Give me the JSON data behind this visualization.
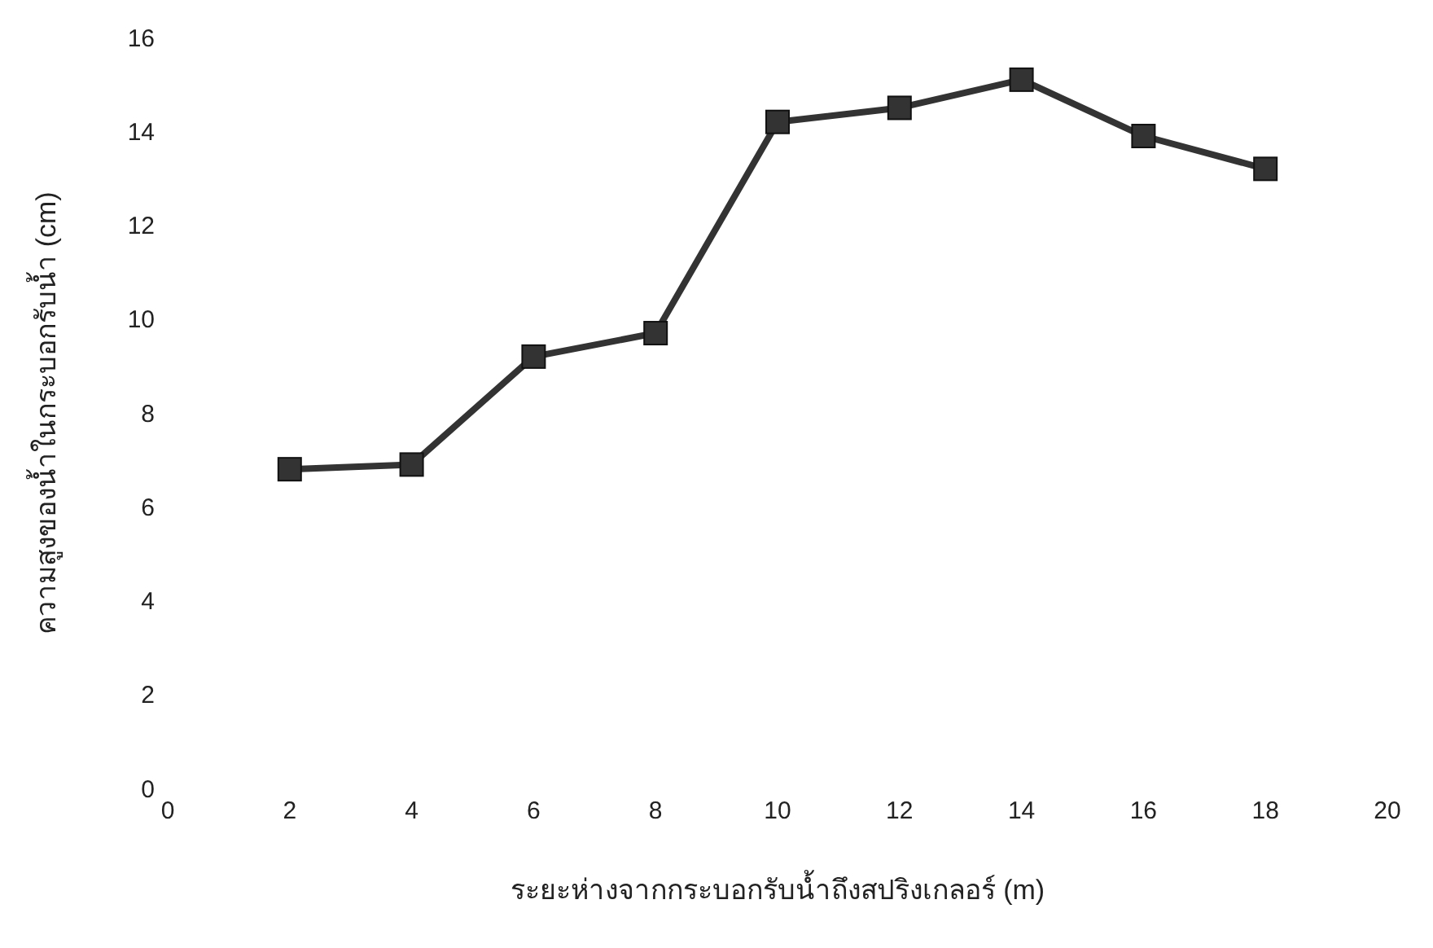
{
  "chart_data": {
    "type": "line",
    "xlabel": "ระยะห่างจากกระบอกรับน้ำถึงสปริงเกลอร์ (m)",
    "ylabel": "ความสูงของน้ำในกระบอกรับน้ำ (cm)",
    "x": [
      2,
      4,
      6,
      8,
      10,
      12,
      14,
      16,
      18
    ],
    "series": [
      {
        "color": "#333333",
        "values": [
          6.8,
          6.9,
          9.2,
          9.7,
          14.2,
          14.5,
          15.1,
          13.9,
          13.2
        ]
      }
    ],
    "xlim": [
      0,
      20
    ],
    "xticks": [
      0,
      2,
      4,
      6,
      8,
      10,
      12,
      14,
      16,
      18,
      20
    ],
    "ylim": [
      0,
      16
    ],
    "yticks": [
      0,
      2,
      4,
      6,
      8,
      10,
      12,
      14,
      16
    ],
    "grid": false,
    "legend": false,
    "marker": "square",
    "line_style": "solid"
  }
}
